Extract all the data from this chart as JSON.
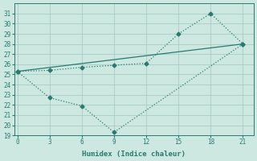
{
  "xlabel": "Humidex (Indice chaleur)",
  "line1_x": [
    0,
    3,
    6,
    9,
    12,
    15,
    18,
    21
  ],
  "line1_y": [
    25.3,
    25.4,
    25.7,
    25.9,
    26.1,
    29.0,
    31.0,
    28.0
  ],
  "line2_x": [
    0,
    3,
    6,
    9,
    21
  ],
  "line2_y": [
    25.3,
    22.7,
    21.9,
    19.3,
    28.0
  ],
  "line3_x": [
    0,
    21
  ],
  "line3_y": [
    25.3,
    28.0
  ],
  "ylim": [
    19,
    32
  ],
  "xlim": [
    -0.3,
    22
  ],
  "yticks": [
    19,
    20,
    21,
    22,
    23,
    24,
    25,
    26,
    27,
    28,
    29,
    30,
    31
  ],
  "xticks": [
    0,
    3,
    6,
    9,
    12,
    15,
    18,
    21
  ],
  "line_color": "#2a7a70",
  "bg_color": "#cce8e0",
  "grid_color": "#aaccc4",
  "marker": "D",
  "marker_size": 2.5,
  "linewidth": 0.9
}
